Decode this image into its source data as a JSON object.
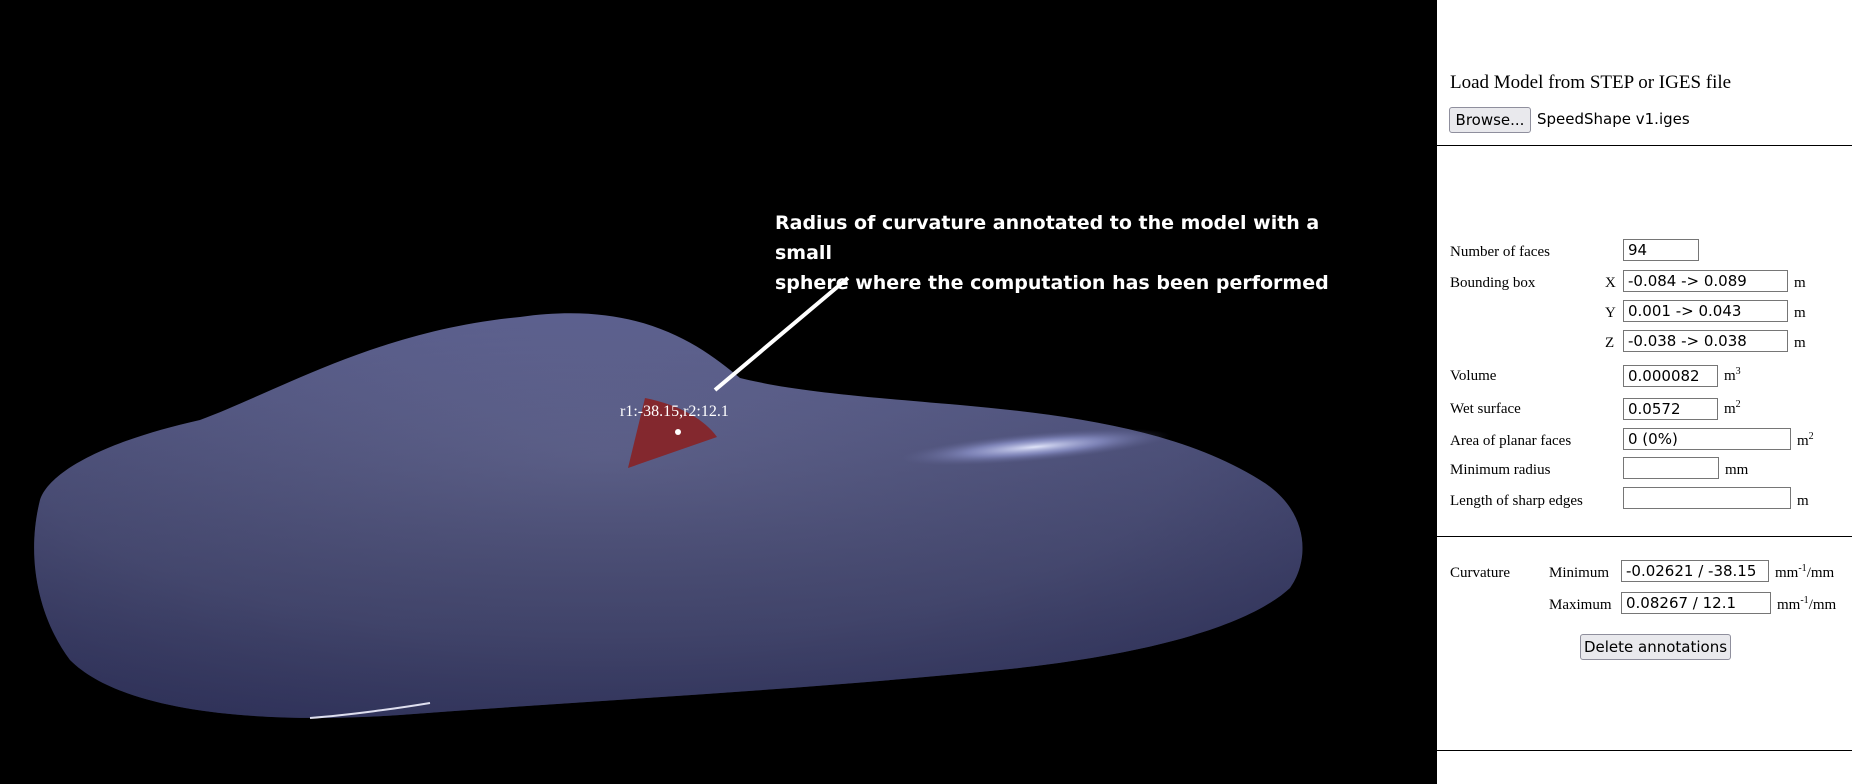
{
  "viewer": {
    "callout_line1": "Radius of curvature annotated to the model with a small",
    "callout_line2": "sphere where the computation has been performed",
    "curvature_label": "r1:-38.15,r2:12.1",
    "model_color": "#565a88",
    "annotation_color": "#8b1f1f"
  },
  "panel": {
    "load_title": "Load Model from STEP or IGES file",
    "browse_label": "Browse...",
    "file_name": "SpeedShape v1.iges",
    "faces_label": "Number of faces",
    "faces_value": "94",
    "bbox_label": "Bounding box",
    "bbox": {
      "x_axis": "X",
      "x_value": "-0.084 -> 0.089",
      "y_axis": "Y",
      "y_value": "0.001 -> 0.043",
      "z_axis": "Z",
      "z_value": "-0.038 -> 0.038",
      "unit": "m"
    },
    "volume_label": "Volume",
    "volume_value": "0.000082",
    "volume_unit": "m",
    "volume_unit_exp": "3",
    "wet_label": "Wet surface",
    "wet_value": "0.0572",
    "wet_unit": "m",
    "wet_unit_exp": "2",
    "planar_label": "Area of planar faces",
    "planar_value": "0 (0%)",
    "planar_unit": "m",
    "planar_unit_exp": "2",
    "minradius_label": "Minimum radius",
    "minradius_value": "",
    "minradius_unit": "mm",
    "sharp_label": "Length of sharp edges",
    "sharp_value": "",
    "sharp_unit": "m",
    "curvature_label": "Curvature",
    "min_label": "Minimum",
    "min_value": "-0.02621 / -38.15",
    "max_label": "Maximum",
    "max_value": "0.08267 / 12.1",
    "curv_unit": "mm",
    "curv_unit_exp": "-1",
    "curv_unit_tail": "/mm",
    "delete_label": "Delete annotations"
  }
}
